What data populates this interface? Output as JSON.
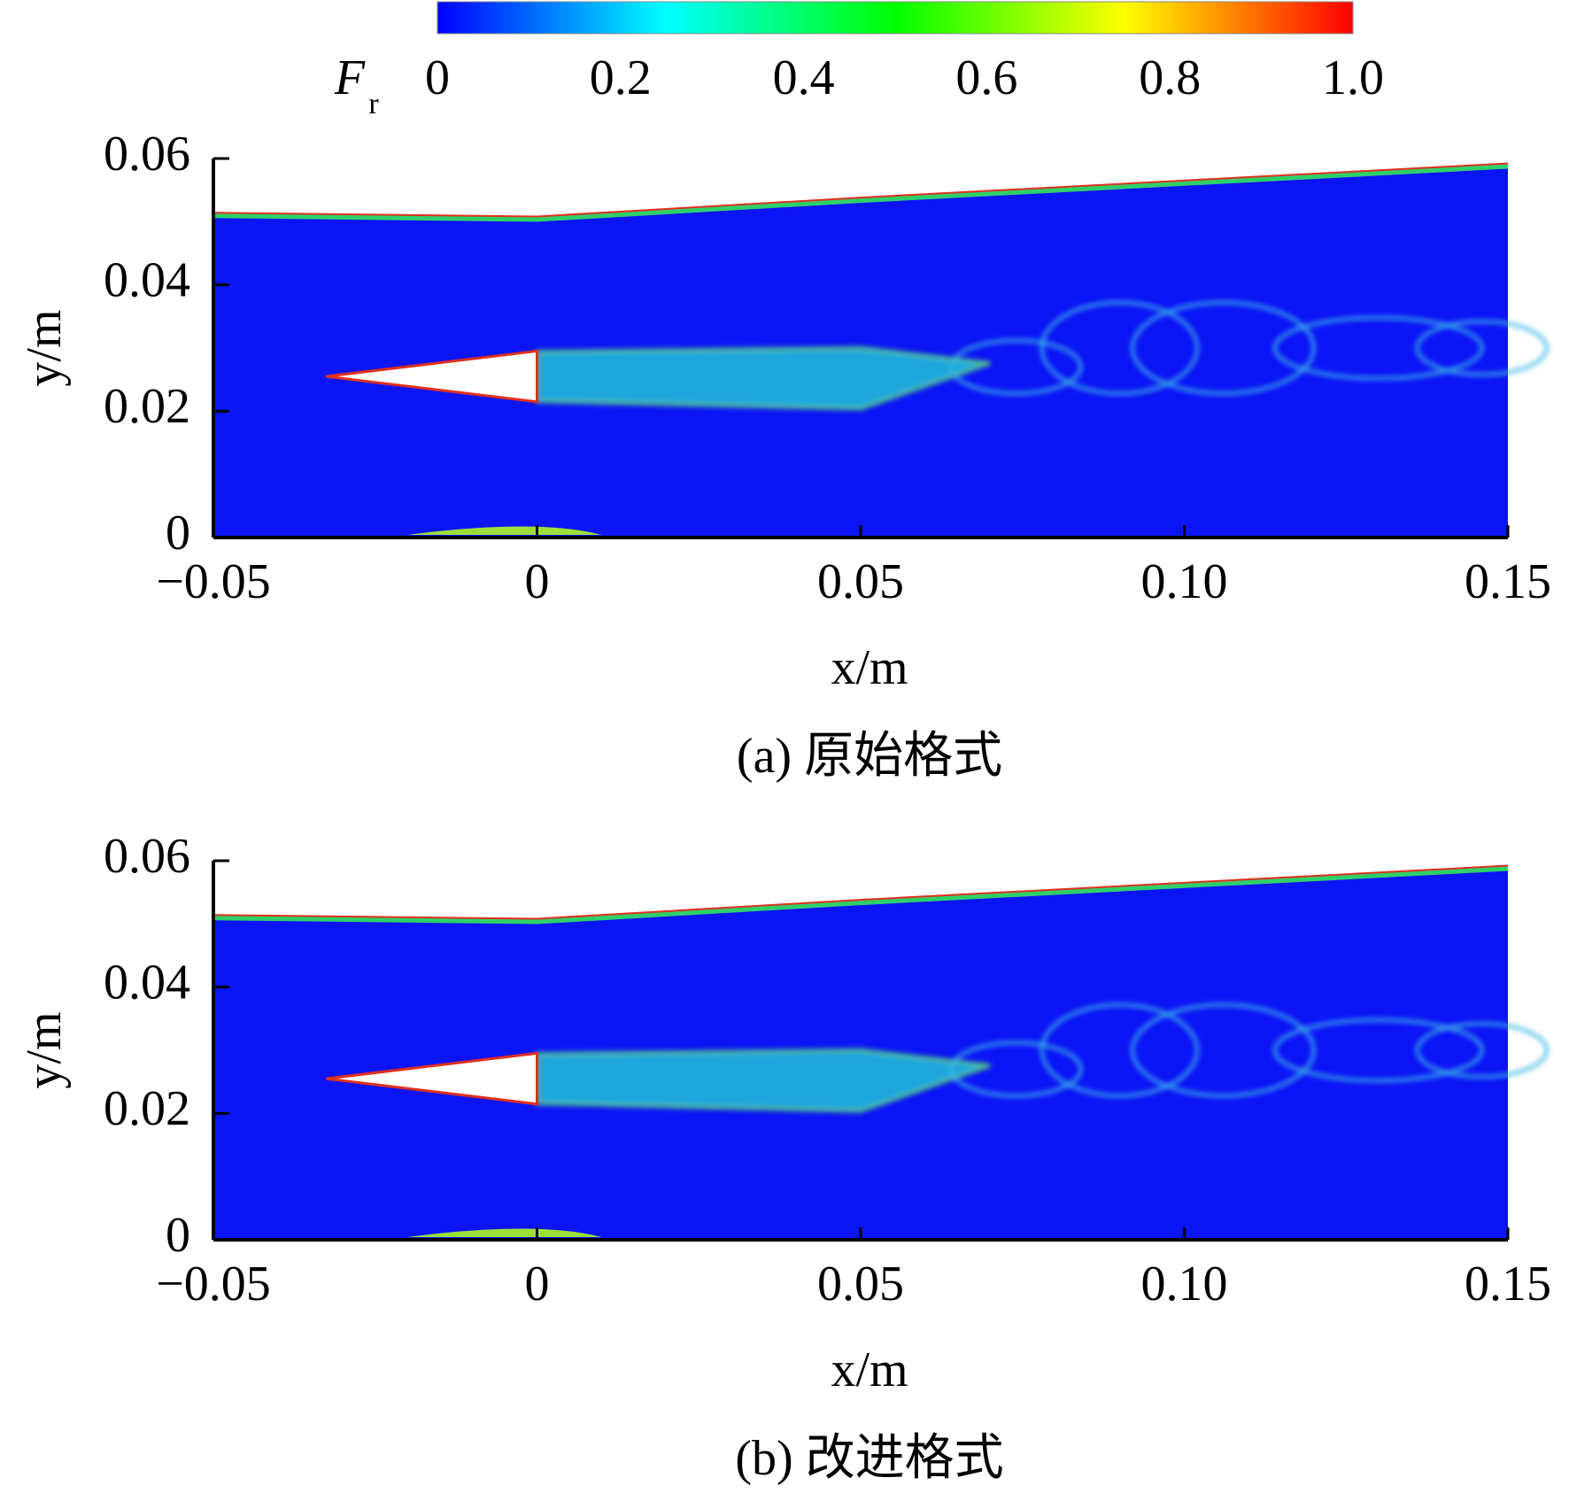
{
  "chart_data": [
    {
      "type": "contour",
      "caption": "(a) 原始格式",
      "xlabel": "x/m",
      "ylabel": "y/m",
      "xlim": [
        -0.05,
        0.15
      ],
      "ylim": [
        0,
        0.06
      ],
      "xticks": [
        {
          "value": -0.05,
          "label": "−0.05"
        },
        0,
        0.05,
        {
          "value": 0.1,
          "label": "0.10"
        },
        0.15
      ],
      "yticks": [
        0,
        0.02,
        0.04,
        0.06
      ],
      "colorbar": {
        "label": "F",
        "label_subscript": "r",
        "colors": [
          "#0000ff",
          "#00ffff",
          "#00ff00",
          "#ffff00",
          "#ff0000"
        ],
        "ticks": [
          0,
          0.2,
          0.4,
          0.6,
          0.8,
          {
            "value": 1,
            "label": "1.0"
          }
        ],
        "lim": [
          0,
          1
        ]
      }
    },
    {
      "type": "contour",
      "caption": "(b) 改进格式",
      "xlabel": "x/m",
      "ylabel": "y/m",
      "xlim": [
        -0.05,
        0.15
      ],
      "ylim": [
        0,
        0.06
      ],
      "xticks": [
        {
          "value": -0.05,
          "label": "−0.05"
        },
        0,
        0.05,
        {
          "value": 0.1,
          "label": "0.10"
        },
        0.15
      ],
      "yticks": [
        0,
        0.02,
        0.04,
        0.06
      ]
    }
  ]
}
